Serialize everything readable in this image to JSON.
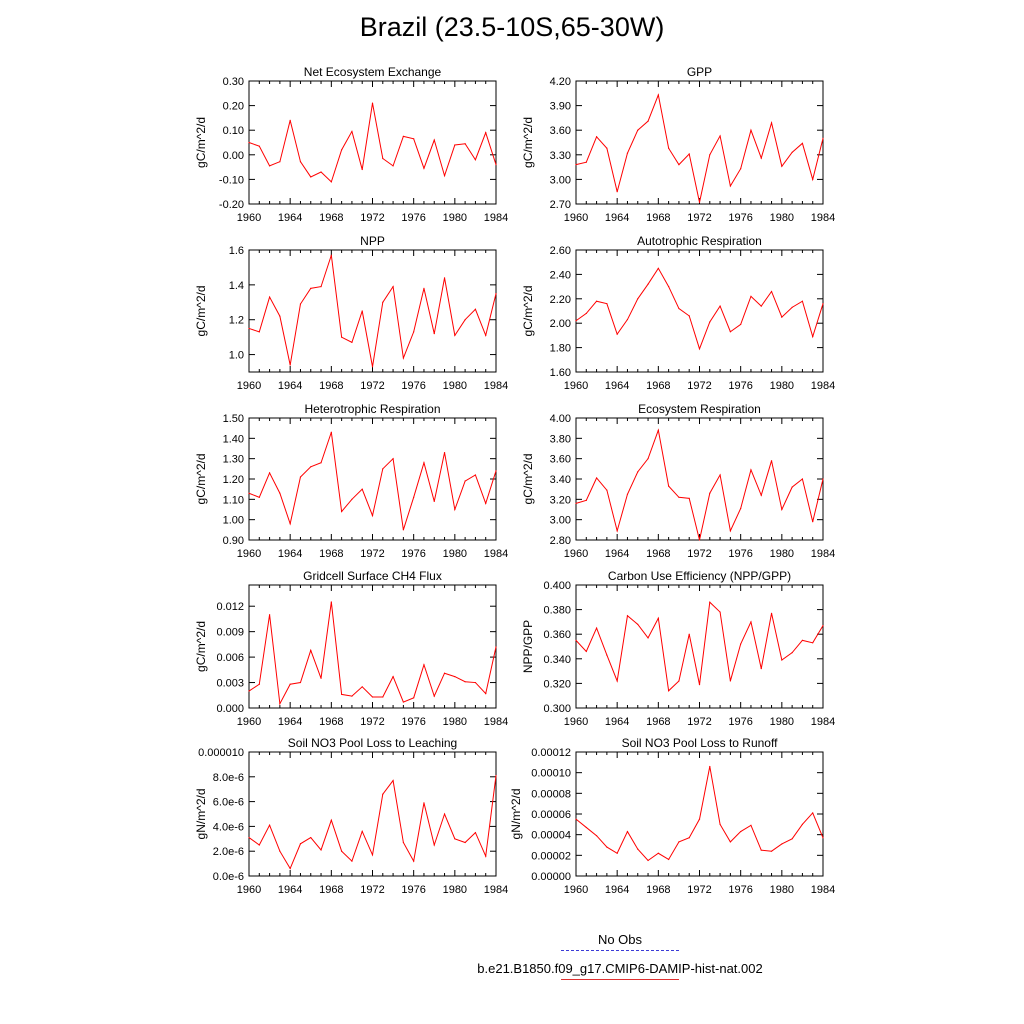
{
  "title": "Brazil (23.5-10S,65-30W)",
  "colors": {
    "series": "#ff0000",
    "obs": "#3b3bd6",
    "axis": "#000000"
  },
  "legend": {
    "obs_label": "No Obs",
    "model_label": "b.e21.B1850.f09_g17.CMIP6-DAMIP-hist-nat.002"
  },
  "chart_data": [
    {
      "type": "line",
      "title": "Net Ecosystem Exchange",
      "ylabel": "gC/m^2/d",
      "xlim": [
        1960,
        1984
      ],
      "ylim": [
        -0.2,
        0.3
      ],
      "xticks": [
        "1960",
        "1964",
        "1968",
        "1972",
        "1976",
        "1980",
        "1984"
      ],
      "yticks": [
        "-0.20",
        "-0.10",
        "0.00",
        "0.10",
        "0.20",
        "0.30"
      ],
      "x": [
        1960,
        1961,
        1962,
        1963,
        1964,
        1965,
        1966,
        1967,
        1968,
        1969,
        1970,
        1971,
        1972,
        1973,
        1974,
        1975,
        1976,
        1977,
        1978,
        1979,
        1980,
        1981,
        1982,
        1983,
        1984
      ],
      "series": [
        {
          "values": [
            0.05,
            0.035,
            -0.045,
            -0.028,
            0.14,
            -0.028,
            -0.09,
            -0.07,
            -0.11,
            0.02,
            0.095,
            -0.06,
            0.21,
            -0.015,
            -0.045,
            0.075,
            0.065,
            -0.055,
            0.06,
            -0.085,
            0.04,
            0.045,
            -0.02,
            0.09,
            -0.04
          ]
        }
      ]
    },
    {
      "type": "line",
      "title": "GPP",
      "ylabel": "gC/m^2/d",
      "xlim": [
        1960,
        1984
      ],
      "ylim": [
        2.7,
        4.2
      ],
      "xticks": [
        "1960",
        "1964",
        "1968",
        "1972",
        "1976",
        "1980",
        "1984"
      ],
      "yticks": [
        "2.70",
        "3.00",
        "3.30",
        "3.60",
        "3.90",
        "4.20"
      ],
      "x": [
        1960,
        1961,
        1962,
        1963,
        1964,
        1965,
        1966,
        1967,
        1968,
        1969,
        1970,
        1971,
        1972,
        1973,
        1974,
        1975,
        1976,
        1977,
        1978,
        1979,
        1980,
        1981,
        1982,
        1983,
        1984
      ],
      "series": [
        {
          "values": [
            3.18,
            3.21,
            3.52,
            3.38,
            2.85,
            3.32,
            3.6,
            3.71,
            4.03,
            3.38,
            3.18,
            3.31,
            2.72,
            3.3,
            3.53,
            2.92,
            3.13,
            3.6,
            3.26,
            3.69,
            3.16,
            3.33,
            3.44,
            3.0,
            3.5
          ]
        }
      ]
    },
    {
      "type": "line",
      "title": "NPP",
      "ylabel": "gC/m^2/d",
      "xlim": [
        1960,
        1984
      ],
      "ylim": [
        0.9,
        1.6
      ],
      "xticks": [
        "1960",
        "1964",
        "1968",
        "1972",
        "1976",
        "1980",
        "1984"
      ],
      "yticks": [
        "1.0",
        "1.2",
        "1.4",
        "1.6"
      ],
      "ytick_values": [
        1.0,
        1.2,
        1.4,
        1.6
      ],
      "x": [
        1960,
        1961,
        1962,
        1963,
        1964,
        1965,
        1966,
        1967,
        1968,
        1969,
        1970,
        1971,
        1972,
        1973,
        1974,
        1975,
        1976,
        1977,
        1978,
        1979,
        1980,
        1981,
        1982,
        1983,
        1984
      ],
      "series": [
        {
          "values": [
            1.15,
            1.13,
            1.33,
            1.22,
            0.94,
            1.29,
            1.38,
            1.39,
            1.57,
            1.1,
            1.07,
            1.25,
            0.93,
            1.3,
            1.39,
            0.98,
            1.13,
            1.38,
            1.12,
            1.44,
            1.11,
            1.2,
            1.26,
            1.11,
            1.35
          ]
        }
      ]
    },
    {
      "type": "line",
      "title": "Autotrophic Respiration",
      "ylabel": "gC/m^2/d",
      "xlim": [
        1960,
        1984
      ],
      "ylim": [
        1.6,
        2.6
      ],
      "xticks": [
        "1960",
        "1964",
        "1968",
        "1972",
        "1976",
        "1980",
        "1984"
      ],
      "yticks": [
        "1.60",
        "1.80",
        "2.00",
        "2.20",
        "2.40",
        "2.60"
      ],
      "x": [
        1960,
        1961,
        1962,
        1963,
        1964,
        1965,
        1966,
        1967,
        1968,
        1969,
        1970,
        1971,
        1972,
        1973,
        1974,
        1975,
        1976,
        1977,
        1978,
        1979,
        1980,
        1981,
        1982,
        1983,
        1984
      ],
      "series": [
        {
          "values": [
            2.02,
            2.08,
            2.18,
            2.16,
            1.91,
            2.03,
            2.2,
            2.32,
            2.45,
            2.3,
            2.12,
            2.06,
            1.79,
            2.01,
            2.14,
            1.93,
            1.99,
            2.22,
            2.14,
            2.26,
            2.05,
            2.13,
            2.18,
            1.89,
            2.16
          ]
        }
      ]
    },
    {
      "type": "line",
      "title": "Heterotrophic Respiration",
      "ylabel": "gC/m^2/d",
      "xlim": [
        1960,
        1984
      ],
      "ylim": [
        0.9,
        1.5
      ],
      "xticks": [
        "1960",
        "1964",
        "1968",
        "1972",
        "1976",
        "1980",
        "1984"
      ],
      "yticks": [
        "0.90",
        "1.00",
        "1.10",
        "1.20",
        "1.30",
        "1.40",
        "1.50"
      ],
      "x": [
        1960,
        1961,
        1962,
        1963,
        1964,
        1965,
        1966,
        1967,
        1968,
        1969,
        1970,
        1971,
        1972,
        1973,
        1974,
        1975,
        1976,
        1977,
        1978,
        1979,
        1980,
        1981,
        1982,
        1983,
        1984
      ],
      "series": [
        {
          "values": [
            1.13,
            1.11,
            1.23,
            1.13,
            0.98,
            1.21,
            1.26,
            1.28,
            1.43,
            1.04,
            1.1,
            1.15,
            1.02,
            1.25,
            1.3,
            0.95,
            1.11,
            1.28,
            1.09,
            1.33,
            1.05,
            1.19,
            1.22,
            1.08,
            1.24
          ]
        }
      ]
    },
    {
      "type": "line",
      "title": "Ecosystem Respiration",
      "ylabel": "gC/m^2/d",
      "xlim": [
        1960,
        1984
      ],
      "ylim": [
        2.8,
        4.0
      ],
      "xticks": [
        "1960",
        "1964",
        "1968",
        "1972",
        "1976",
        "1980",
        "1984"
      ],
      "yticks": [
        "2.80",
        "3.00",
        "3.20",
        "3.40",
        "3.60",
        "3.80",
        "4.00"
      ],
      "x": [
        1960,
        1961,
        1962,
        1963,
        1964,
        1965,
        1966,
        1967,
        1968,
        1969,
        1970,
        1971,
        1972,
        1973,
        1974,
        1975,
        1976,
        1977,
        1978,
        1979,
        1980,
        1981,
        1982,
        1983,
        1984
      ],
      "series": [
        {
          "values": [
            3.16,
            3.19,
            3.41,
            3.29,
            2.89,
            3.25,
            3.47,
            3.6,
            3.88,
            3.33,
            3.22,
            3.21,
            2.8,
            3.26,
            3.44,
            2.89,
            3.11,
            3.49,
            3.24,
            3.58,
            3.1,
            3.32,
            3.4,
            2.98,
            3.4
          ]
        }
      ]
    },
    {
      "type": "line",
      "title": "Gridcell Surface CH4 Flux",
      "ylabel": "gC/m^2/d",
      "xlim": [
        1960,
        1984
      ],
      "ylim": [
        0.0,
        0.0145
      ],
      "xticks": [
        "1960",
        "1964",
        "1968",
        "1972",
        "1976",
        "1980",
        "1984"
      ],
      "yticks": [
        "0.000",
        "0.003",
        "0.006",
        "0.009",
        "0.012"
      ],
      "ytick_values": [
        0.0,
        0.003,
        0.006,
        0.009,
        0.012
      ],
      "x": [
        1960,
        1961,
        1962,
        1963,
        1964,
        1965,
        1966,
        1967,
        1968,
        1969,
        1970,
        1971,
        1972,
        1973,
        1974,
        1975,
        1976,
        1977,
        1978,
        1979,
        1980,
        1981,
        1982,
        1983,
        1984
      ],
      "series": [
        {
          "values": [
            0.002,
            0.0028,
            0.011,
            0.0005,
            0.0028,
            0.003,
            0.0068,
            0.0035,
            0.0125,
            0.0016,
            0.0014,
            0.0025,
            0.0013,
            0.0013,
            0.0037,
            0.0007,
            0.0012,
            0.0051,
            0.0014,
            0.0041,
            0.0037,
            0.0031,
            0.003,
            0.0017,
            0.0072
          ]
        }
      ]
    },
    {
      "type": "line",
      "title": "Carbon Use Efficiency (NPP/GPP)",
      "ylabel": "NPP/GPP",
      "xlim": [
        1960,
        1984
      ],
      "ylim": [
        0.3,
        0.4
      ],
      "xticks": [
        "1960",
        "1964",
        "1968",
        "1972",
        "1976",
        "1980",
        "1984"
      ],
      "yticks": [
        "0.300",
        "0.320",
        "0.340",
        "0.360",
        "0.380",
        "0.400"
      ],
      "x": [
        1960,
        1961,
        1962,
        1963,
        1964,
        1965,
        1966,
        1967,
        1968,
        1969,
        1970,
        1971,
        1972,
        1973,
        1974,
        1975,
        1976,
        1977,
        1978,
        1979,
        1980,
        1981,
        1982,
        1983,
        1984
      ],
      "series": [
        {
          "values": [
            0.355,
            0.346,
            0.365,
            0.343,
            0.322,
            0.375,
            0.368,
            0.357,
            0.373,
            0.314,
            0.322,
            0.36,
            0.319,
            0.386,
            0.378,
            0.322,
            0.352,
            0.37,
            0.332,
            0.377,
            0.339,
            0.345,
            0.355,
            0.353,
            0.367
          ]
        }
      ]
    },
    {
      "type": "line",
      "title": "Soil NO3 Pool Loss to Leaching",
      "ylabel": "gN/m^2/d",
      "xlim": [
        1960,
        1984
      ],
      "ylim": [
        0.0,
        1e-05
      ],
      "xticks": [
        "1960",
        "1964",
        "1968",
        "1972",
        "1976",
        "1980",
        "1984"
      ],
      "yticks": [
        "0.0e-6",
        "2.0e-6",
        "4.0e-6",
        "6.0e-6",
        "8.0e-6",
        "0.000010"
      ],
      "x": [
        1960,
        1961,
        1962,
        1963,
        1964,
        1965,
        1966,
        1967,
        1968,
        1969,
        1970,
        1971,
        1972,
        1973,
        1974,
        1975,
        1976,
        1977,
        1978,
        1979,
        1980,
        1981,
        1982,
        1983,
        1984
      ],
      "series": [
        {
          "values": [
            3.1e-06,
            2.5e-06,
            4.1e-06,
            2e-06,
            6e-07,
            2.6e-06,
            3.1e-06,
            2.1e-06,
            4.5e-06,
            2e-06,
            1.2e-06,
            3.6e-06,
            1.7e-06,
            6.6e-06,
            7.7e-06,
            2.7e-06,
            1.2e-06,
            5.9e-06,
            2.5e-06,
            5e-06,
            3e-06,
            2.7e-06,
            3.5e-06,
            1.6e-06,
            8.1e-06
          ]
        }
      ]
    },
    {
      "type": "line",
      "title": "Soil NO3 Pool Loss to Runoff",
      "ylabel": "gN/m^2/d",
      "xlim": [
        1960,
        1984
      ],
      "ylim": [
        0.0,
        0.00012
      ],
      "xticks": [
        "1960",
        "1964",
        "1968",
        "1972",
        "1976",
        "1980",
        "1984"
      ],
      "yticks": [
        "0.00000",
        "0.00002",
        "0.00004",
        "0.00006",
        "0.00008",
        "0.00010",
        "0.00012"
      ],
      "x": [
        1960,
        1961,
        1962,
        1963,
        1964,
        1965,
        1966,
        1967,
        1968,
        1969,
        1970,
        1971,
        1972,
        1973,
        1974,
        1975,
        1976,
        1977,
        1978,
        1979,
        1980,
        1981,
        1982,
        1983,
        1984
      ],
      "series": [
        {
          "values": [
            5.5e-05,
            4.7e-05,
            3.9e-05,
            2.8e-05,
            2.2e-05,
            4.3e-05,
            2.6e-05,
            1.5e-05,
            2.2e-05,
            1.6e-05,
            3.3e-05,
            3.7e-05,
            5.5e-05,
            0.000106,
            5e-05,
            3.3e-05,
            4.3e-05,
            4.9e-05,
            2.5e-05,
            2.4e-05,
            3.1e-05,
            3.6e-05,
            5e-05,
            6.1e-05,
            3.7e-05
          ]
        }
      ]
    }
  ]
}
